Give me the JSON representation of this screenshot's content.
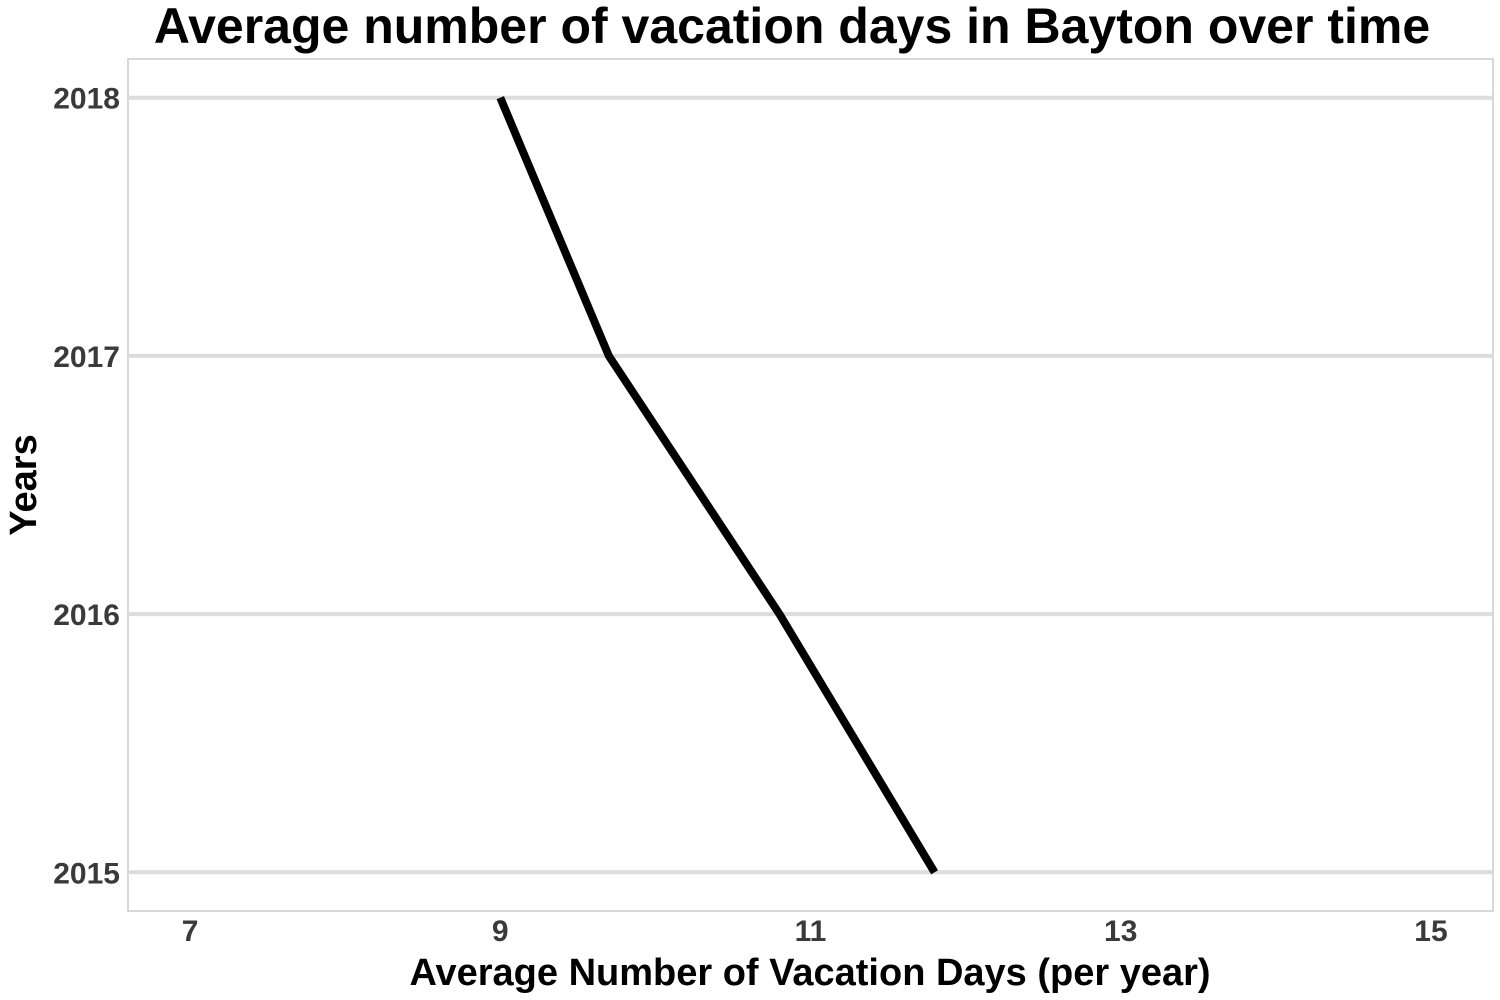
{
  "chart_data": {
    "type": "line",
    "title": "Average number of vacation days in Bayton over time",
    "xlabel": "Average Number of Vacation Days (per year)",
    "ylabel": "Years",
    "xlim": [
      6.6,
      15.4
    ],
    "ylim": [
      2014.85,
      2018.15
    ],
    "x_ticks": [
      "7",
      "9",
      "11",
      "13",
      "15"
    ],
    "y_ticks": [
      "2015",
      "2016",
      "2017",
      "2018"
    ],
    "grid": "horizontal",
    "legend": "none",
    "series": [
      {
        "x": [
          11.8,
          10.8,
          9.7,
          9.0
        ],
        "y": [
          2015,
          2016,
          2017,
          2018
        ]
      }
    ],
    "colors": {
      "line": "#000000",
      "grid": "#dcdcdc",
      "panel_border": "#cccccc",
      "tick_text": "#3a3a3a"
    }
  }
}
